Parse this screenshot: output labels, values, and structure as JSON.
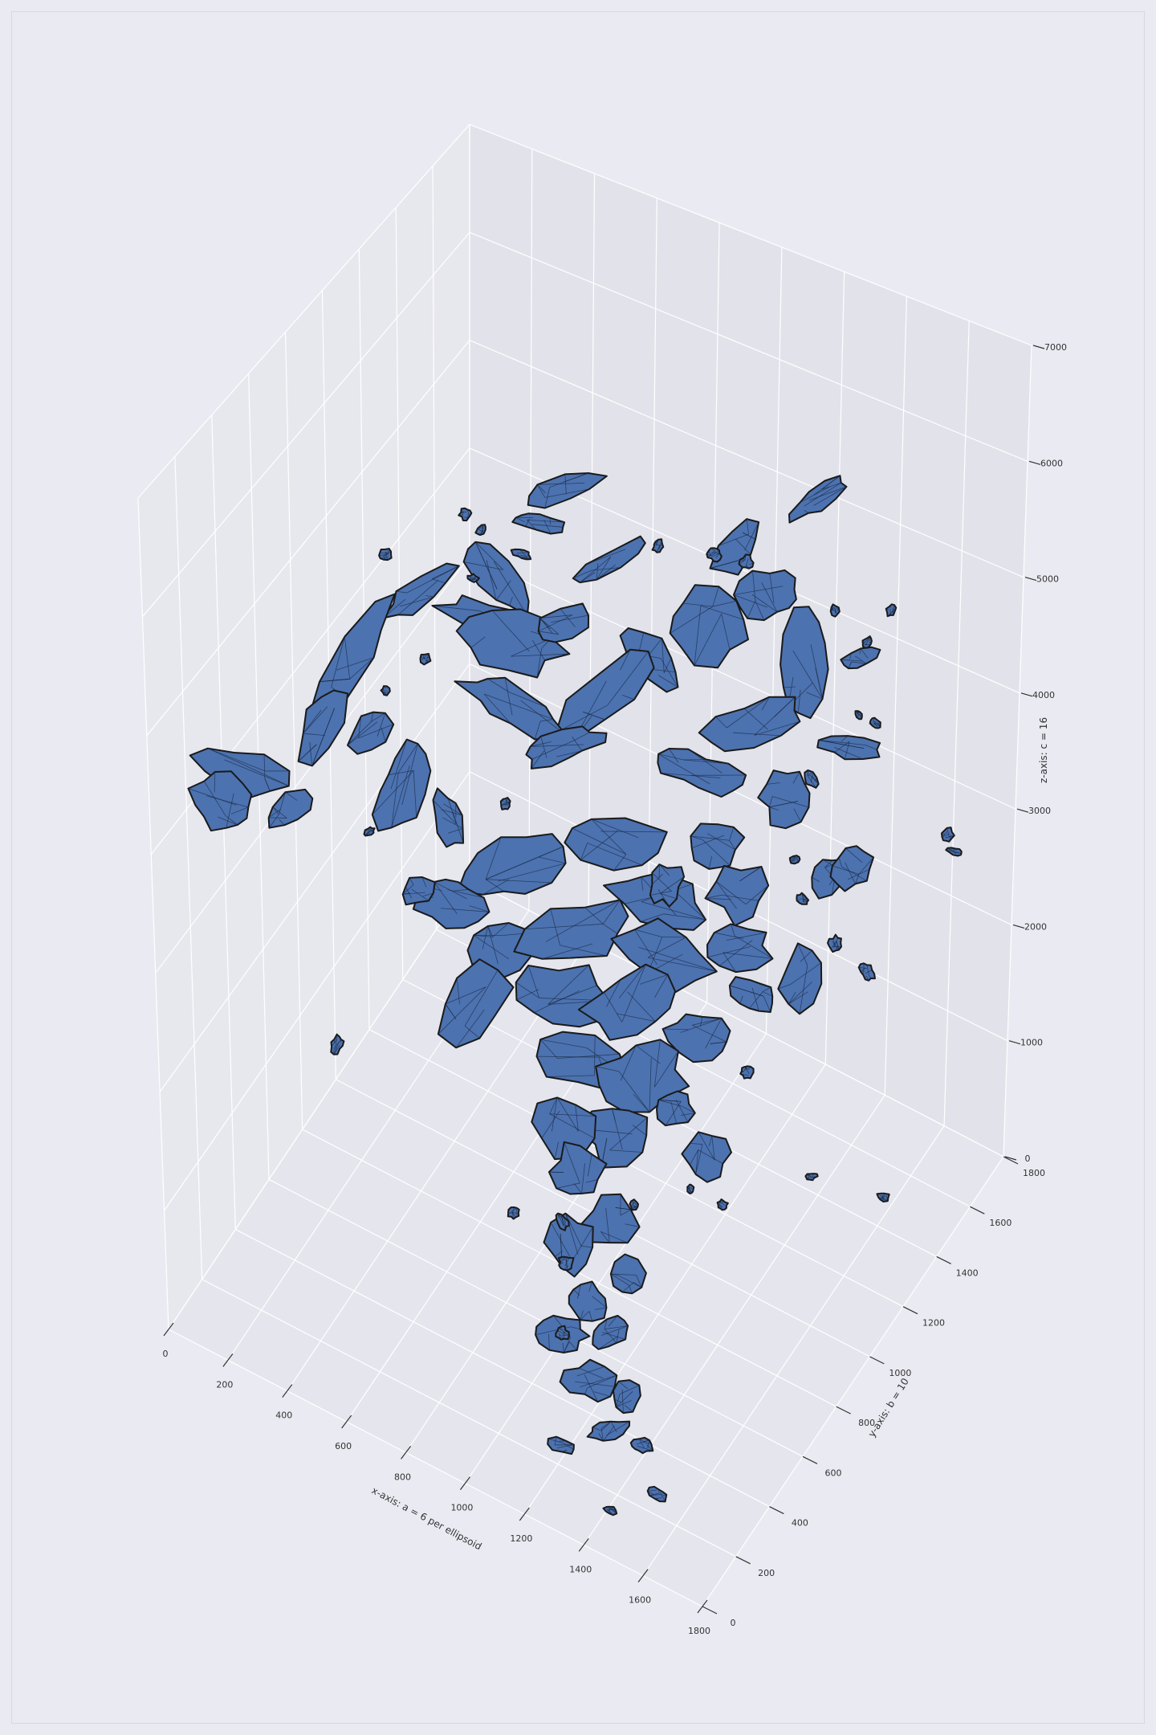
{
  "chart_data": {
    "type": "3d-isosurface",
    "xlabel": "x-axis: a = 6 per ellipsoid",
    "ylabel": "y-axis: b = 10",
    "zlabel": "z-axis: c = 16",
    "xlim": [
      0,
      1800
    ],
    "ylim": [
      0,
      1800
    ],
    "zlim": [
      0,
      7000
    ],
    "x_ticks": [
      "0",
      "200",
      "400",
      "600",
      "800",
      "1000",
      "1200",
      "1400",
      "1600",
      "1800"
    ],
    "y_ticks": [
      "0",
      "200",
      "400",
      "600",
      "800",
      "1000",
      "1200",
      "1400",
      "1600",
      "1800"
    ],
    "z_ticks": [
      "0",
      "1000",
      "2000",
      "3000",
      "4000",
      "5000",
      "6000",
      "7000"
    ],
    "grid": true,
    "surface_color": "#4c72b0",
    "edge_color": "#1a1a1a",
    "pane_color": "#e4e4ec"
  }
}
